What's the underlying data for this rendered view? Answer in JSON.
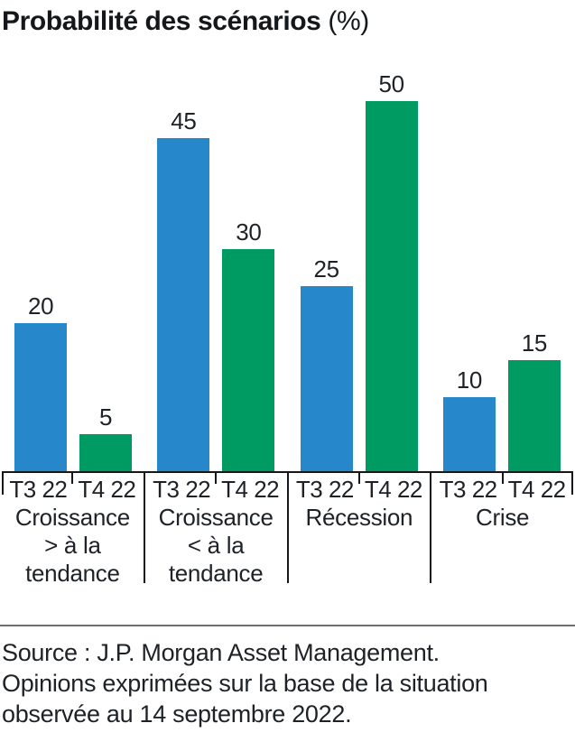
{
  "title": {
    "main": "Probabilité des scénarios",
    "suffix": " (%)"
  },
  "chart_data": {
    "type": "bar",
    "title": "Probabilité des scénarios (%)",
    "unit": "%",
    "ylim": [
      0,
      50
    ],
    "grid": false,
    "legend_position": "none",
    "value_labels": true,
    "categories": [
      "Croissance > à la tendance",
      "Croissance < à la tendance",
      "Récession",
      "Crise"
    ],
    "category_display_lines": [
      [
        "Croissance",
        "> à la",
        "tendance"
      ],
      [
        "Croissance",
        "< à la",
        "tendance"
      ],
      [
        "Récession"
      ],
      [
        "Crise"
      ]
    ],
    "series": [
      {
        "name": "T3 22",
        "color": "#2688CA",
        "values": [
          20,
          45,
          25,
          10
        ]
      },
      {
        "name": "T4 22",
        "color": "#009A63",
        "values": [
          5,
          30,
          50,
          15
        ]
      }
    ]
  },
  "source": {
    "lines": [
      "Source : J.P. Morgan Asset Management.",
      "Opinions exprimées sur la base de la situation",
      "observée au 14 septembre 2022."
    ]
  }
}
